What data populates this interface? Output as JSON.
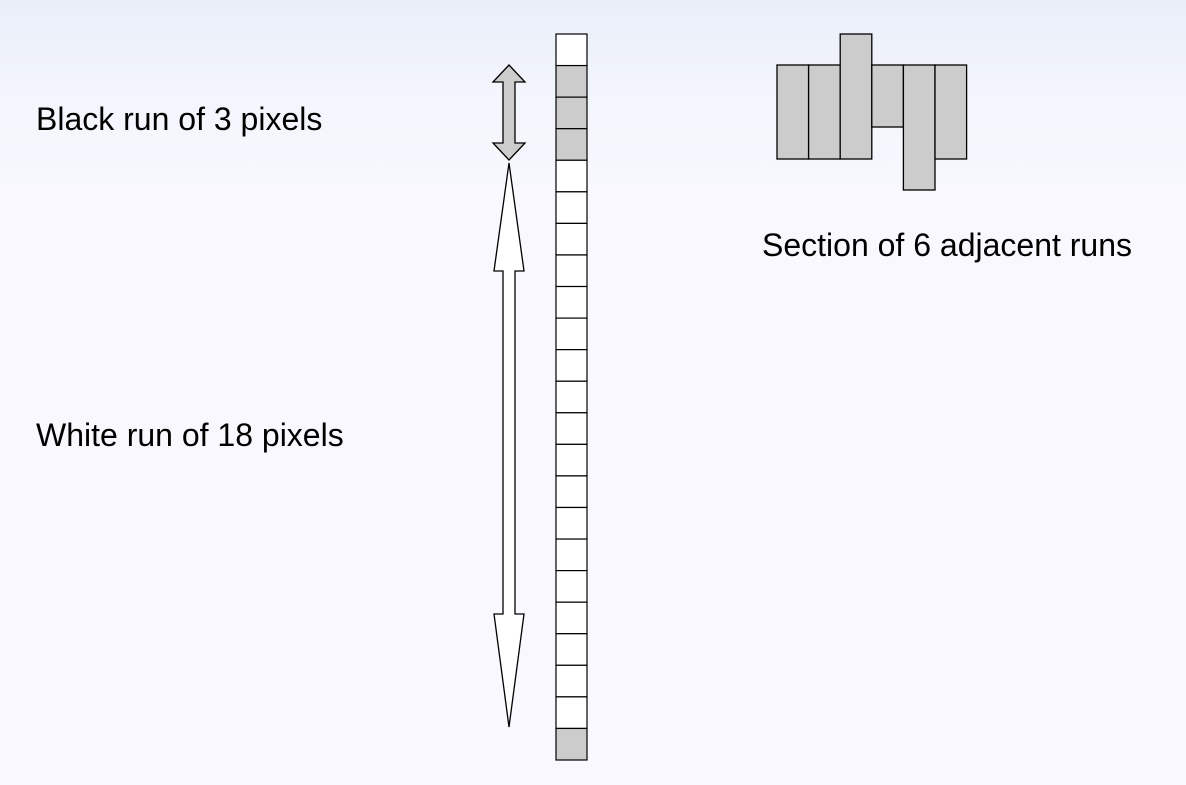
{
  "labels": {
    "black_run": "Black run of 3 pixels",
    "white_run": "White run of 18 pixels",
    "section": "Section of 6 adjacent runs"
  },
  "pixel_column": {
    "pixels": [
      "white",
      "black",
      "black",
      "black",
      "white",
      "white",
      "white",
      "white",
      "white",
      "white",
      "white",
      "white",
      "white",
      "white",
      "white",
      "white",
      "white",
      "white",
      "white",
      "white",
      "white",
      "white",
      "black"
    ]
  },
  "colors": {
    "black_pixel": "#cccccc",
    "white_pixel": "#ffffff",
    "stroke": "#000000"
  }
}
